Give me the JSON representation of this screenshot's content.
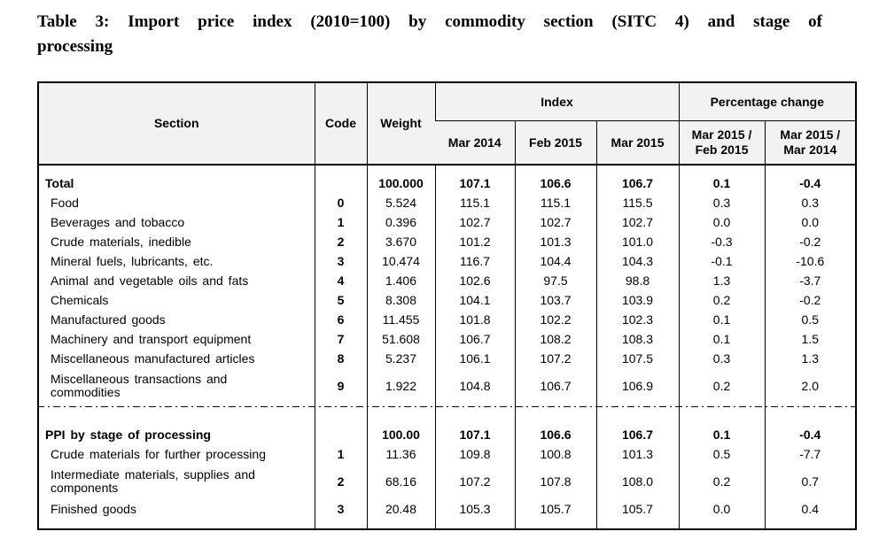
{
  "title": {
    "line1": "Table 3: Import price index (2010=100) by commodity section (SITC 4) and stage of",
    "line2": "processing"
  },
  "table": {
    "headers": {
      "section": "Section",
      "code": "Code",
      "weight": "Weight",
      "index_group": "Index",
      "pct_group": "Percentage change",
      "index_cols": [
        "Mar 2014",
        "Feb 2015",
        "Mar 2015"
      ],
      "pct_cols": [
        "Mar 2015 /\nFeb 2015",
        "Mar 2015 /\nMar 2014"
      ]
    },
    "sections": [
      {
        "rows": [
          {
            "label": "Total",
            "code": "",
            "weight": "100.000",
            "i1": "107.1",
            "i2": "106.6",
            "i3": "106.7",
            "p1": "0.1",
            "p2": "-0.4",
            "bold": true
          },
          {
            "label": "Food",
            "code": "0",
            "weight": "5.524",
            "i1": "115.1",
            "i2": "115.1",
            "i3": "115.5",
            "p1": "0.3",
            "p2": "0.3",
            "bold": false
          },
          {
            "label": "Beverages and tobacco",
            "code": "1",
            "weight": "0.396",
            "i1": "102.7",
            "i2": "102.7",
            "i3": "102.7",
            "p1": "0.0",
            "p2": "0.0",
            "bold": false
          },
          {
            "label": "Crude materials, inedible",
            "code": "2",
            "weight": "3.670",
            "i1": "101.2",
            "i2": "101.3",
            "i3": "101.0",
            "p1": "-0.3",
            "p2": "-0.2",
            "bold": false
          },
          {
            "label": "Mineral fuels, lubricants, etc.",
            "code": "3",
            "weight": "10.474",
            "i1": "116.7",
            "i2": "104.4",
            "i3": "104.3",
            "p1": "-0.1",
            "p2": "-10.6",
            "bold": false
          },
          {
            "label": "Animal and vegetable oils and fats",
            "code": "4",
            "weight": "1.406",
            "i1": "102.6",
            "i2": "97.5",
            "i3": "98.8",
            "p1": "1.3",
            "p2": "-3.7",
            "bold": false
          },
          {
            "label": "Chemicals",
            "code": "5",
            "weight": "8.308",
            "i1": "104.1",
            "i2": "103.7",
            "i3": "103.9",
            "p1": "0.2",
            "p2": "-0.2",
            "bold": false
          },
          {
            "label": "Manufactured goods",
            "code": "6",
            "weight": "11.455",
            "i1": "101.8",
            "i2": "102.2",
            "i3": "102.3",
            "p1": "0.1",
            "p2": "0.5",
            "bold": false
          },
          {
            "label": "Machinery and transport equipment",
            "code": "7",
            "weight": "51.608",
            "i1": "106.7",
            "i2": "108.2",
            "i3": "108.3",
            "p1": "0.1",
            "p2": "1.5",
            "bold": false
          },
          {
            "label": "Miscellaneous manufactured articles",
            "code": "8",
            "weight": "5.237",
            "i1": "106.1",
            "i2": "107.2",
            "i3": "107.5",
            "p1": "0.3",
            "p2": "1.3",
            "bold": false
          },
          {
            "label": "Miscellaneous transactions and\ncommodities",
            "code": "9",
            "weight": "1.922",
            "i1": "104.8",
            "i2": "106.7",
            "i3": "106.9",
            "p1": "0.2",
            "p2": "2.0",
            "bold": false
          }
        ]
      },
      {
        "rows": [
          {
            "label": "PPI by stage of processing",
            "code": "",
            "weight": "100.00",
            "i1": "107.1",
            "i2": "106.6",
            "i3": "106.7",
            "p1": "0.1",
            "p2": "-0.4",
            "bold": true
          },
          {
            "label": "Crude materials for further processing",
            "code": "1",
            "weight": "11.36",
            "i1": "109.8",
            "i2": "100.8",
            "i3": "101.3",
            "p1": "0.5",
            "p2": "-7.7",
            "bold": false
          },
          {
            "label": "Intermediate materials, supplies and\ncomponents",
            "code": "2",
            "weight": "68.16",
            "i1": "107.2",
            "i2": "107.8",
            "i3": "108.0",
            "p1": "0.2",
            "p2": "0.7",
            "bold": false
          },
          {
            "label": "Finished goods",
            "code": "3",
            "weight": "20.48",
            "i1": "105.3",
            "i2": "105.7",
            "i3": "105.7",
            "p1": "0.0",
            "p2": "0.4",
            "bold": false
          }
        ]
      }
    ]
  }
}
